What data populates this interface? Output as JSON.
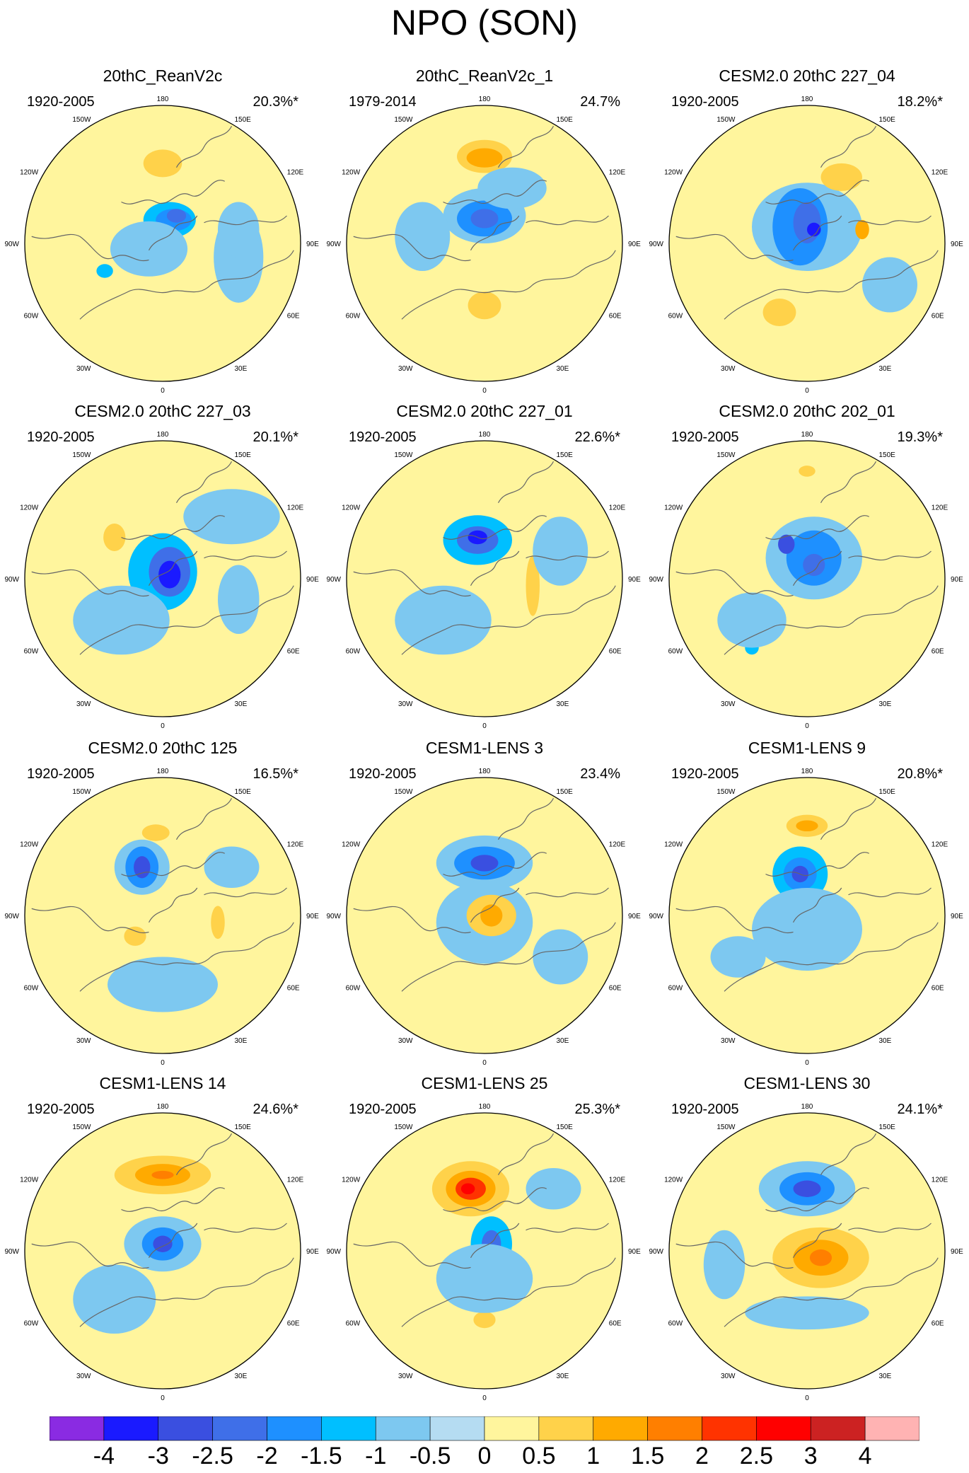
{
  "title": "NPO (SON)",
  "panels": [
    {
      "title": "20thC_ReanV2c",
      "period": "1920-2005",
      "variance": "20.3%*",
      "blobs": [
        [
          0.0,
          0.58,
          0.14,
          0.1,
          0.5
        ],
        [
          0.05,
          0.17,
          0.19,
          0.13,
          -1.0
        ],
        [
          0.08,
          0.17,
          0.13,
          0.08,
          -1.5
        ],
        [
          0.1,
          0.2,
          0.07,
          0.05,
          -2.0
        ],
        [
          -0.1,
          -0.04,
          0.28,
          0.2,
          -0.5
        ],
        [
          0.55,
          -0.1,
          0.18,
          0.33,
          -0.5
        ],
        [
          -0.42,
          -0.2,
          0.06,
          0.05,
          -1.0
        ],
        [
          0.55,
          0.1,
          0.15,
          0.2,
          -0.5
        ]
      ]
    },
    {
      "title": "20thC_ReanV2c_1",
      "period": "1979-2014",
      "variance": "24.7%",
      "blobs": [
        [
          0.0,
          0.63,
          0.2,
          0.12,
          0.5
        ],
        [
          0.0,
          0.62,
          0.13,
          0.07,
          1.0
        ],
        [
          0.0,
          0.2,
          0.3,
          0.2,
          -0.5
        ],
        [
          0.0,
          0.18,
          0.2,
          0.13,
          -1.5
        ],
        [
          0.0,
          0.18,
          0.1,
          0.07,
          -2.0
        ],
        [
          0.0,
          -0.45,
          0.12,
          0.1,
          0.5
        ],
        [
          0.2,
          0.4,
          0.25,
          0.15,
          -0.5
        ],
        [
          -0.45,
          0.05,
          0.2,
          0.25,
          -0.5
        ]
      ]
    },
    {
      "title": "CESM2.0 20thC 227_04",
      "period": "1920-2005",
      "variance": "18.2%*",
      "blobs": [
        [
          0.0,
          0.12,
          0.4,
          0.32,
          -0.5
        ],
        [
          -0.05,
          0.12,
          0.2,
          0.28,
          -1.5
        ],
        [
          0.0,
          0.15,
          0.1,
          0.15,
          -2.0
        ],
        [
          0.05,
          0.1,
          0.05,
          0.05,
          -3.0
        ],
        [
          -0.2,
          -0.5,
          0.12,
          0.1,
          0.5
        ],
        [
          0.4,
          0.1,
          0.05,
          0.07,
          1.0
        ],
        [
          0.25,
          0.48,
          0.15,
          0.1,
          0.5
        ],
        [
          0.6,
          -0.3,
          0.2,
          0.2,
          -0.5
        ]
      ]
    },
    {
      "title": "CESM2.0 20thC 227_03",
      "period": "1920-2005",
      "variance": "20.1%*",
      "blobs": [
        [
          0.0,
          0.05,
          0.25,
          0.28,
          -1.0
        ],
        [
          0.05,
          0.05,
          0.15,
          0.18,
          -2.0
        ],
        [
          0.05,
          0.03,
          0.08,
          0.1,
          -3.0
        ],
        [
          -0.35,
          0.3,
          0.08,
          0.1,
          0.5
        ],
        [
          -0.3,
          -0.3,
          0.35,
          0.25,
          -0.5
        ],
        [
          0.5,
          0.45,
          0.35,
          0.2,
          -0.5
        ],
        [
          0.55,
          -0.15,
          0.15,
          0.25,
          -0.5
        ]
      ]
    },
    {
      "title": "CESM2.0 20thC 227_01",
      "period": "1920-2005",
      "variance": "22.6%*",
      "blobs": [
        [
          0.0,
          0.38,
          0.08,
          0.07,
          0.5
        ],
        [
          -0.05,
          0.28,
          0.25,
          0.18,
          -1.0
        ],
        [
          -0.05,
          0.28,
          0.15,
          0.1,
          -2.0
        ],
        [
          -0.05,
          0.3,
          0.07,
          0.05,
          -3.0
        ],
        [
          0.35,
          -0.05,
          0.05,
          0.22,
          0.5
        ],
        [
          -0.3,
          -0.3,
          0.35,
          0.25,
          -0.5
        ],
        [
          0.55,
          0.2,
          0.2,
          0.25,
          -0.5
        ]
      ]
    },
    {
      "title": "CESM2.0 20thC 202_01",
      "period": "1920-2005",
      "variance": "19.3%*",
      "blobs": [
        [
          0.05,
          0.15,
          0.35,
          0.3,
          -0.5
        ],
        [
          0.05,
          0.15,
          0.2,
          0.2,
          -1.5
        ],
        [
          0.05,
          0.1,
          0.08,
          0.08,
          -2.0
        ],
        [
          -0.15,
          0.25,
          0.06,
          0.07,
          -2.5
        ],
        [
          0.0,
          0.78,
          0.06,
          0.04,
          0.5
        ],
        [
          -0.4,
          -0.5,
          0.05,
          0.05,
          -1.0
        ],
        [
          -0.4,
          -0.3,
          0.25,
          0.2,
          -0.5
        ]
      ]
    },
    {
      "title": "CESM2.0 20thC 125",
      "period": "1920-2005",
      "variance": "16.5%*",
      "blobs": [
        [
          -0.15,
          0.35,
          0.2,
          0.2,
          -0.5
        ],
        [
          -0.15,
          0.35,
          0.12,
          0.15,
          -1.5
        ],
        [
          -0.15,
          0.35,
          0.06,
          0.08,
          -2.5
        ],
        [
          -0.05,
          0.6,
          0.1,
          0.06,
          0.5
        ],
        [
          0.4,
          -0.05,
          0.05,
          0.12,
          0.5
        ],
        [
          -0.2,
          -0.15,
          0.08,
          0.07,
          0.5
        ],
        [
          0.0,
          -0.5,
          0.4,
          0.2,
          -0.5
        ],
        [
          0.5,
          0.35,
          0.2,
          0.15,
          -0.5
        ]
      ]
    },
    {
      "title": "CESM1-LENS 3",
      "period": "1920-2005",
      "variance": "23.4%",
      "blobs": [
        [
          0.0,
          0.38,
          0.35,
          0.2,
          -0.5
        ],
        [
          0.0,
          0.38,
          0.22,
          0.12,
          -1.5
        ],
        [
          0.0,
          0.38,
          0.1,
          0.06,
          -2.5
        ],
        [
          0.0,
          -0.05,
          0.35,
          0.3,
          -0.5
        ],
        [
          0.05,
          0.0,
          0.18,
          0.15,
          0.5
        ],
        [
          0.05,
          0.0,
          0.08,
          0.08,
          1.0
        ],
        [
          0.55,
          -0.3,
          0.2,
          0.2,
          -0.5
        ]
      ]
    },
    {
      "title": "CESM1-LENS 9",
      "period": "1920-2005",
      "variance": "20.8%*",
      "blobs": [
        [
          0.0,
          0.65,
          0.15,
          0.08,
          0.5
        ],
        [
          0.0,
          0.65,
          0.08,
          0.04,
          1.0
        ],
        [
          -0.05,
          0.3,
          0.2,
          0.2,
          -1.0
        ],
        [
          -0.05,
          0.3,
          0.12,
          0.12,
          -1.5
        ],
        [
          -0.05,
          0.3,
          0.06,
          0.06,
          -2.5
        ],
        [
          0.0,
          -0.1,
          0.4,
          0.3,
          -0.5
        ],
        [
          -0.5,
          -0.3,
          0.2,
          0.15,
          -0.5
        ]
      ]
    },
    {
      "title": "CESM1-LENS 14",
      "period": "1920-2005",
      "variance": "24.6%*",
      "blobs": [
        [
          0.0,
          0.55,
          0.35,
          0.14,
          0.5
        ],
        [
          0.0,
          0.55,
          0.2,
          0.08,
          1.0
        ],
        [
          0.0,
          0.55,
          0.08,
          0.03,
          1.5
        ],
        [
          0.0,
          0.05,
          0.28,
          0.2,
          -0.5
        ],
        [
          0.0,
          0.05,
          0.15,
          0.12,
          -1.5
        ],
        [
          0.0,
          0.05,
          0.07,
          0.06,
          -2.5
        ],
        [
          -0.4,
          -0.3,
          0.08,
          0.07,
          -1.0
        ],
        [
          -0.35,
          -0.35,
          0.3,
          0.25,
          -0.5
        ]
      ]
    },
    {
      "title": "CESM1-LENS 25",
      "period": "1920-2005",
      "variance": "25.3%*",
      "blobs": [
        [
          -0.1,
          0.45,
          0.28,
          0.2,
          0.5
        ],
        [
          -0.1,
          0.45,
          0.18,
          0.13,
          1.0
        ],
        [
          -0.1,
          0.45,
          0.11,
          0.08,
          2.0
        ],
        [
          -0.12,
          0.45,
          0.05,
          0.04,
          2.5
        ],
        [
          0.05,
          0.05,
          0.15,
          0.2,
          -1.0
        ],
        [
          0.05,
          0.05,
          0.07,
          0.1,
          -2.0
        ],
        [
          0.0,
          -0.5,
          0.08,
          0.06,
          0.5
        ],
        [
          0.0,
          -0.2,
          0.35,
          0.25,
          -0.5
        ],
        [
          0.5,
          0.45,
          0.2,
          0.15,
          -0.5
        ]
      ]
    },
    {
      "title": "CESM1-LENS 30",
      "period": "1920-2005",
      "variance": "24.1%*",
      "blobs": [
        [
          0.0,
          0.45,
          0.35,
          0.2,
          -0.5
        ],
        [
          0.0,
          0.45,
          0.2,
          0.12,
          -1.5
        ],
        [
          0.0,
          0.45,
          0.1,
          0.06,
          -2.5
        ],
        [
          0.1,
          -0.05,
          0.35,
          0.22,
          0.5
        ],
        [
          0.1,
          -0.05,
          0.2,
          0.13,
          1.0
        ],
        [
          0.1,
          -0.05,
          0.08,
          0.06,
          1.5
        ],
        [
          0.0,
          -0.45,
          0.45,
          0.12,
          -0.5
        ],
        [
          -0.6,
          -0.1,
          0.15,
          0.25,
          -0.5
        ]
      ]
    }
  ],
  "colorbar": {
    "colors": [
      "#8a2be2",
      "#1a1aff",
      "#3a4fe0",
      "#3f6fe8",
      "#1e90ff",
      "#00bfff",
      "#7dc8f0",
      "#b5dcf2",
      "#fff59d",
      "#ffd24a",
      "#ffaa00",
      "#ff7f00",
      "#ff3300",
      "#ff0000",
      "#cc2222",
      "#ffb3b3"
    ],
    "tick_labels": [
      "-4",
      "-3",
      "-2.5",
      "-2",
      "-1.5",
      "-1",
      "-0.5",
      "0",
      "0.5",
      "1",
      "1.5",
      "2",
      "2.5",
      "3",
      "4"
    ]
  },
  "lon_labels": {
    "top": "180",
    "bottom": "0",
    "l150": "150W",
    "r150": "150E",
    "l120": "120W",
    "r120": "120E",
    "l90": "90W",
    "r90": "90E",
    "l60": "60W",
    "r60": "60E",
    "l30": "30W",
    "r30": "30E"
  }
}
